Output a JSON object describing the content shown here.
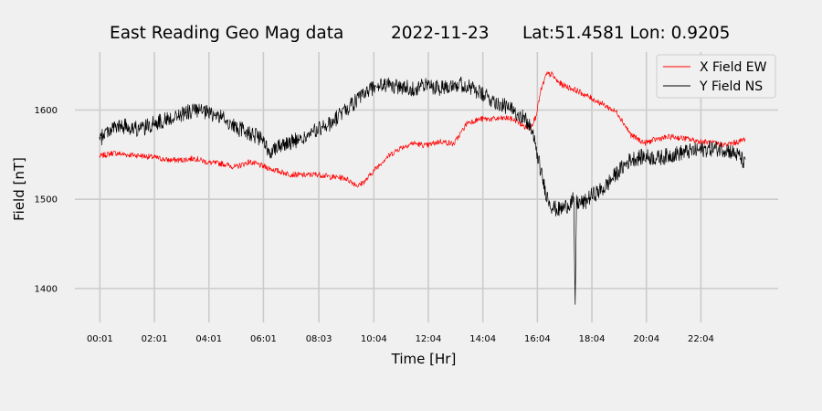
{
  "chart_data": {
    "type": "line",
    "title": {
      "station": "East Reading Geo Mag data",
      "date": "2022-11-23",
      "location": "Lat:51.4581  Lon: 0.9205"
    },
    "xlabel": "Time  [Hr]",
    "ylabel": "Field  [nT]",
    "x_unit": "hours",
    "xlim": [
      -0.9,
      24.9
    ],
    "ylim": [
      1362,
      1665
    ],
    "grid": true,
    "legend_position": "top-right",
    "x_ticks": [
      {
        "value": 0.0167,
        "label": "00:01"
      },
      {
        "value": 2.0167,
        "label": "02:01"
      },
      {
        "value": 4.0167,
        "label": "04:01"
      },
      {
        "value": 6.0167,
        "label": "06:01"
      },
      {
        "value": 8.05,
        "label": "08:03"
      },
      {
        "value": 10.0667,
        "label": "10:04"
      },
      {
        "value": 12.0667,
        "label": "12:04"
      },
      {
        "value": 14.0667,
        "label": "14:04"
      },
      {
        "value": 16.0667,
        "label": "16:04"
      },
      {
        "value": 18.0667,
        "label": "18:04"
      },
      {
        "value": 20.0667,
        "label": "20:04"
      },
      {
        "value": 22.0667,
        "label": "22:04"
      }
    ],
    "y_ticks": [
      1400,
      1500,
      1600
    ],
    "series": [
      {
        "name": "X Field EW",
        "color": "#ff0000",
        "x": [
          0.0,
          0.5,
          1.0,
          1.5,
          2.0,
          2.5,
          3.0,
          3.5,
          4.0,
          4.5,
          5.0,
          5.5,
          6.0,
          6.5,
          7.0,
          7.5,
          8.0,
          8.5,
          9.0,
          9.5,
          9.8,
          10.0,
          10.5,
          11.0,
          11.5,
          12.0,
          12.5,
          13.0,
          13.5,
          14.0,
          14.5,
          15.0,
          15.3,
          15.6,
          15.8,
          16.0,
          16.2,
          16.4,
          16.6,
          16.8,
          17.0,
          17.5,
          18.0,
          18.5,
          19.0,
          19.5,
          20.0,
          20.5,
          21.0,
          21.5,
          22.0,
          22.5,
          23.0,
          23.5,
          23.7
        ],
        "y": [
          1548,
          1552,
          1550,
          1549,
          1547,
          1544,
          1544,
          1546,
          1541,
          1540,
          1536,
          1542,
          1537,
          1532,
          1528,
          1527,
          1528,
          1525,
          1524,
          1515,
          1522,
          1530,
          1546,
          1557,
          1563,
          1560,
          1565,
          1562,
          1586,
          1590,
          1590,
          1591,
          1588,
          1581,
          1580,
          1592,
          1622,
          1640,
          1640,
          1632,
          1628,
          1622,
          1614,
          1606,
          1597,
          1572,
          1563,
          1568,
          1570,
          1568,
          1565,
          1563,
          1561,
          1565,
          1568
        ]
      },
      {
        "name": "Y Field NS",
        "color": "#000000",
        "x": [
          0.0,
          0.2,
          0.5,
          1.0,
          1.5,
          2.0,
          2.5,
          3.0,
          3.5,
          4.0,
          4.5,
          5.0,
          5.5,
          6.0,
          6.2,
          6.5,
          7.0,
          7.5,
          8.0,
          8.5,
          9.0,
          9.5,
          10.0,
          10.5,
          11.0,
          11.5,
          12.0,
          12.5,
          13.0,
          13.5,
          14.0,
          14.5,
          15.0,
          15.5,
          15.8,
          16.0,
          16.2,
          16.4,
          16.6,
          16.8,
          17.0,
          17.2,
          17.4,
          17.45,
          17.5,
          17.8,
          18.0,
          18.5,
          19.0,
          19.5,
          20.0,
          20.5,
          21.0,
          21.5,
          22.0,
          22.5,
          23.0,
          23.5,
          23.7
        ],
        "y": [
          1565,
          1575,
          1580,
          1582,
          1578,
          1585,
          1590,
          1595,
          1600,
          1596,
          1592,
          1580,
          1575,
          1566,
          1552,
          1560,
          1564,
          1568,
          1578,
          1585,
          1600,
          1612,
          1625,
          1628,
          1626,
          1624,
          1628,
          1625,
          1630,
          1627,
          1618,
          1610,
          1602,
          1594,
          1582,
          1560,
          1530,
          1505,
          1492,
          1488,
          1490,
          1494,
          1500,
          1375,
          1496,
          1496,
          1503,
          1512,
          1530,
          1545,
          1548,
          1546,
          1550,
          1553,
          1555,
          1557,
          1556,
          1548,
          1538
        ]
      }
    ]
  }
}
